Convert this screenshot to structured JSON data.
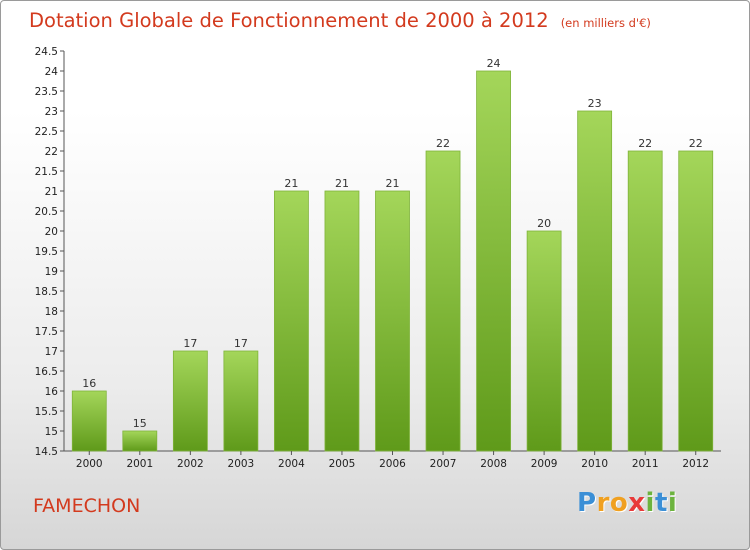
{
  "title": "Dotation Globale de Fonctionnement de 2000 à 2012",
  "subtitle": "(en milliers d'€)",
  "commune": "FAMECHON",
  "logo": {
    "letters": [
      "P",
      "r",
      "o",
      "x",
      "i",
      "t",
      "i"
    ],
    "colors": [
      "#3b8fd6",
      "#f0a020",
      "#f0a020",
      "#e83a3a",
      "#6cb33e",
      "#3b8fd6",
      "#6cb33e"
    ]
  },
  "colors": {
    "title": "#d33a1e",
    "bar_top": "#a4d65a",
    "bar_bottom": "#5f9a1a"
  },
  "chart_data": {
    "type": "bar",
    "categories": [
      "2000",
      "2001",
      "2002",
      "2003",
      "2004",
      "2005",
      "2006",
      "2007",
      "2008",
      "2009",
      "2010",
      "2011",
      "2012"
    ],
    "values": [
      16,
      15,
      17,
      17,
      21,
      21,
      21,
      22,
      24,
      20,
      23,
      22,
      22
    ],
    "data_labels": [
      "16",
      "15",
      "17",
      "17",
      "21",
      "21",
      "21",
      "22",
      "24",
      "20",
      "23",
      "22",
      "22"
    ],
    "ylim": [
      14.5,
      24.5
    ],
    "yticks": [
      "14.5",
      "15",
      "15.5",
      "16",
      "16.5",
      "17",
      "17.5",
      "18",
      "18.5",
      "19",
      "19.5",
      "20",
      "20.5",
      "21",
      "21.5",
      "22",
      "22.5",
      "23",
      "23.5",
      "24",
      "24.5"
    ],
    "grid": false,
    "xlabel": "",
    "ylabel": ""
  }
}
